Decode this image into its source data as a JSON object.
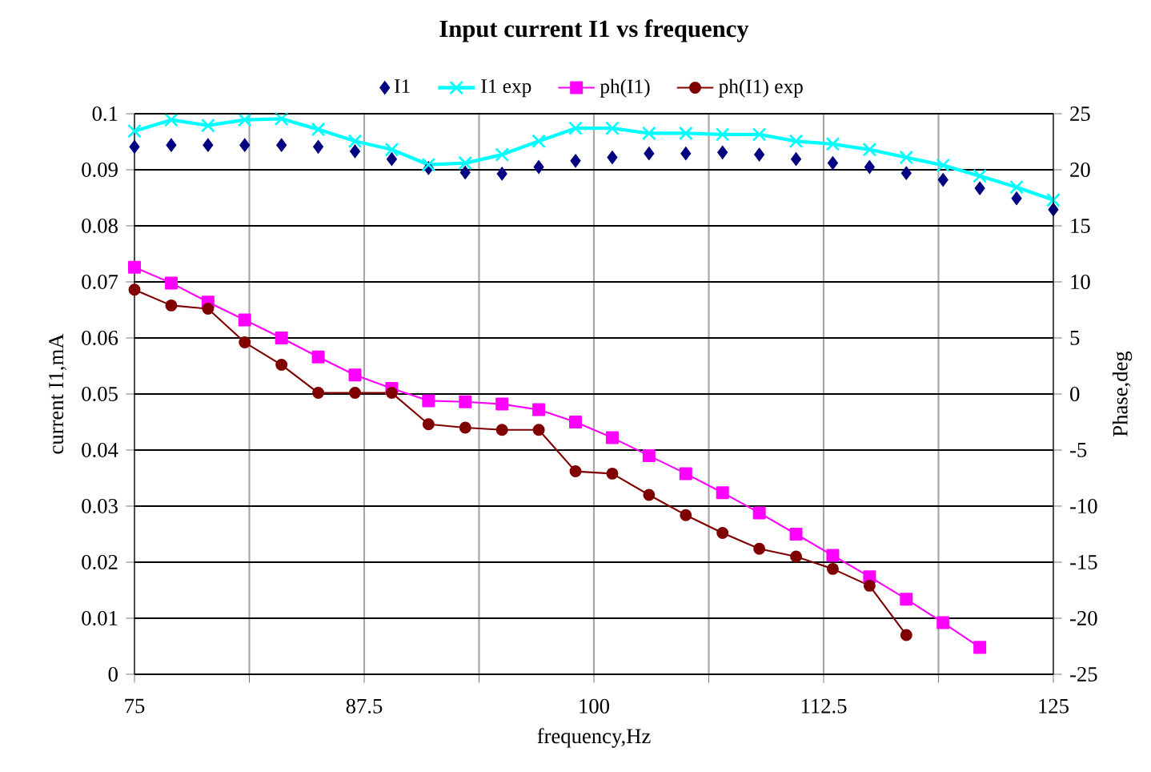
{
  "chart_data": {
    "type": "line",
    "title": "Input current I1 vs frequency",
    "xlabel": "frequency,Hz",
    "ylabel": "current I1,mA",
    "y2label": "Phase,deg",
    "x": [
      75,
      77,
      79,
      81,
      83,
      85,
      87,
      89,
      91,
      93,
      95,
      97,
      99,
      101,
      103,
      105,
      107,
      109,
      111,
      113,
      115,
      117,
      119,
      121,
      123,
      125
    ],
    "series": [
      {
        "name": "I1",
        "type": "scatter",
        "marker": "diamond",
        "color": "#000080",
        "values": [
          0.0941,
          0.0944,
          0.0944,
          0.0944,
          0.0944,
          0.0941,
          0.0933,
          0.0919,
          0.0903,
          0.0895,
          0.0893,
          0.0905,
          0.0916,
          0.0922,
          0.0929,
          0.0929,
          0.0931,
          0.0927,
          0.0919,
          0.0912,
          0.0905,
          0.0894,
          0.0882,
          0.0867,
          0.0849,
          0.0829
        ]
      },
      {
        "name": "I1 exp",
        "marker": "cross",
        "color": "#00ffff",
        "values": [
          0.0969,
          0.0989,
          0.0979,
          0.0989,
          0.0991,
          0.0972,
          0.0951,
          0.0936,
          0.0909,
          0.0912,
          0.0927,
          0.0951,
          0.0974,
          0.0974,
          0.0965,
          0.0965,
          0.0963,
          0.0963,
          0.0951,
          0.0946,
          0.0936,
          0.0922,
          0.0908,
          0.0889,
          0.0869,
          0.0846
        ]
      },
      {
        "name": "ph(I1)",
        "marker": "square",
        "axis": "y2",
        "color": "#ff00ff",
        "values": [
          11.3,
          9.9,
          8.2,
          6.6,
          5.0,
          3.3,
          1.7,
          0.5,
          -0.6,
          -0.7,
          -0.9,
          -1.4,
          -2.5,
          -3.9,
          -5.5,
          -7.1,
          -8.8,
          -10.6,
          -12.5,
          -14.4,
          -16.3,
          -18.3,
          -20.4,
          -22.6,
          null,
          null
        ]
      },
      {
        "name": "ph(I1) exp",
        "marker": "circle",
        "axis": "y2",
        "color": "#800000",
        "values": [
          9.3,
          7.9,
          7.6,
          4.6,
          2.6,
          0.1,
          0.1,
          0.1,
          -2.7,
          -3.0,
          -3.2,
          -3.2,
          -6.9,
          -7.1,
          -9.0,
          -10.8,
          -12.4,
          -13.8,
          -14.5,
          -15.6,
          -17.1,
          -21.5,
          null,
          null,
          null,
          null
        ]
      }
    ],
    "xlim": [
      75,
      125
    ],
    "xticks": [
      75,
      {
        "value": 81.25,
        "label": null
      },
      87.5,
      {
        "value": 93.75,
        "label": null
      },
      100,
      {
        "value": 106.25,
        "label": null
      },
      112.5,
      {
        "value": 118.75,
        "label": null
      },
      125
    ],
    "ylim": [
      0,
      0.1
    ],
    "yticks": [
      0,
      0.01,
      0.02,
      0.03,
      0.04,
      0.05,
      0.06,
      0.07,
      0.08,
      0.09,
      0.1
    ],
    "y2lim": [
      -25,
      25
    ],
    "y2ticks": [
      -25,
      -20,
      -15,
      -10,
      -5,
      0,
      5,
      10,
      15,
      20,
      25
    ],
    "grid": true,
    "legend": "top"
  }
}
